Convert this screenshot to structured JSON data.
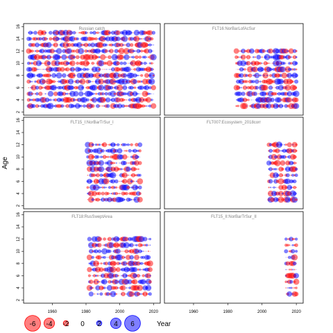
{
  "chart_data": {
    "type": "scatter",
    "ylabel": "Age",
    "xlabel": "Year",
    "xlim": [
      1943,
      2024
    ],
    "ylim": [
      1.5,
      16.5
    ],
    "xticks": [
      1960,
      1980,
      2000,
      2020
    ],
    "yticks": [
      2,
      4,
      6,
      8,
      10,
      12,
      14,
      16
    ],
    "colors": {
      "positive": "#0000ff",
      "negative": "#ff0000"
    },
    "grid": false,
    "legend": {
      "placement": "bottom-left",
      "values": [
        -6,
        -4,
        -2,
        0,
        2,
        4,
        6
      ],
      "labels": [
        "-6",
        "-4",
        "-2",
        "0",
        "2",
        "4",
        "6"
      ]
    },
    "panels": [
      {
        "name": "Russian catch",
        "ages": [
          3,
          15
        ],
        "years": [
          1946,
          2020
        ]
      },
      {
        "name": "FLT16:NorBarLofAcSur",
        "ages": [
          3,
          12
        ],
        "years": [
          1985,
          2020
        ]
      },
      {
        "name": "FLT15_I:NorBarTrSur_I",
        "ages": [
          3,
          12
        ],
        "years": [
          1981,
          2012
        ]
      },
      {
        "name": "FLT007:Ecosystem_2018corr",
        "ages": [
          3,
          12
        ],
        "years": [
          2004,
          2020
        ]
      },
      {
        "name": "FLT18:RusSweptArea",
        "ages": [
          3,
          12
        ],
        "years": [
          1982,
          2018
        ]
      },
      {
        "name": "FLT15_II:NorBarTrSur_II",
        "ages": [
          3,
          12
        ],
        "years": [
          2014,
          2020
        ]
      }
    ]
  }
}
